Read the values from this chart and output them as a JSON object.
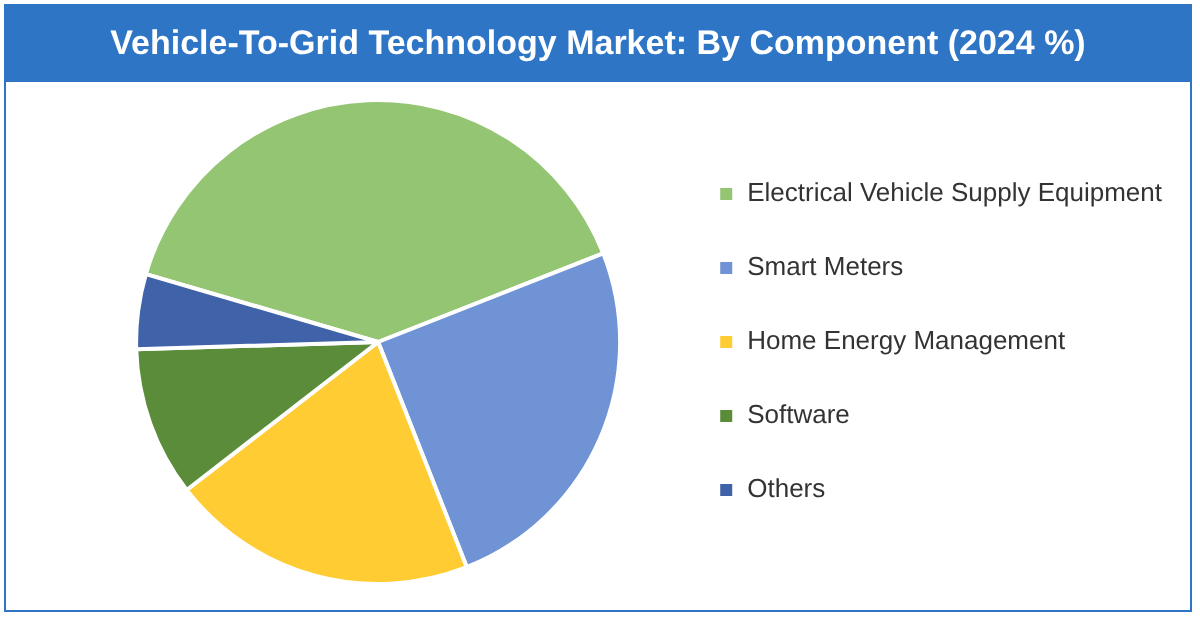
{
  "chart_data": {
    "type": "pie",
    "title": "Vehicle-To-Grid Technology Market: By Component (2024 %)",
    "categories": [
      "Electrical Vehicle Supply Equipment",
      "Smart Meters",
      "Home Energy Management",
      "Software",
      "Others"
    ],
    "values": [
      39.5,
      25,
      20.5,
      10,
      5
    ],
    "colors": [
      "#93c572",
      "#6f93d4",
      "#ffcc33",
      "#5b8c3a",
      "#3f62a8"
    ],
    "legend": "right"
  }
}
